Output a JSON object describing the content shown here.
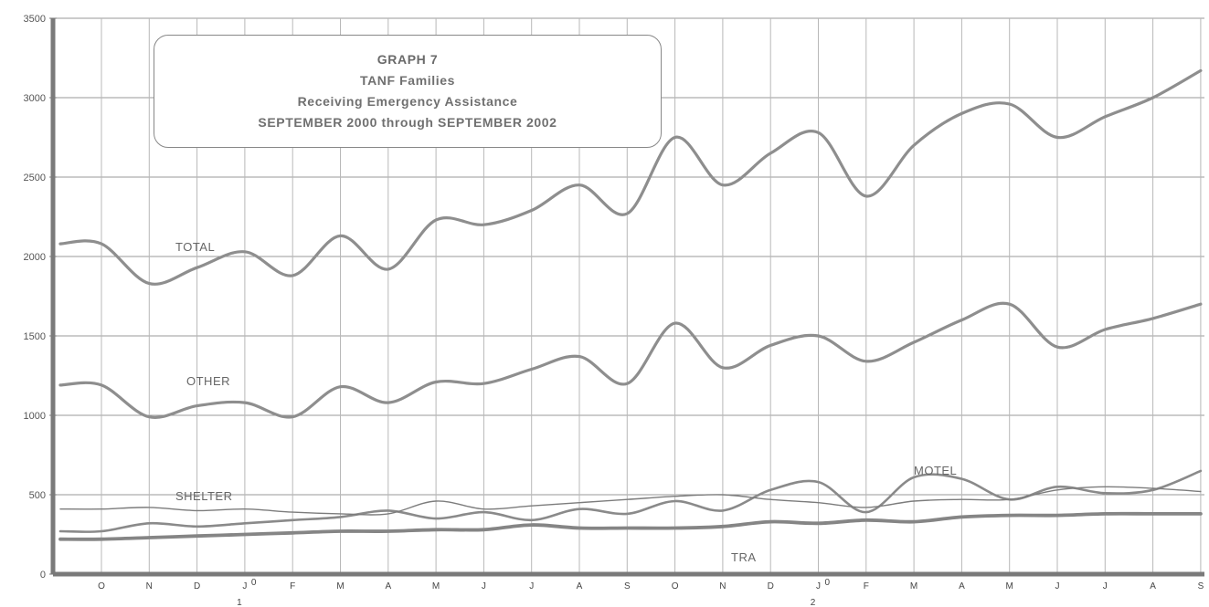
{
  "title": {
    "graph_number": "GRAPH 7",
    "line1": "TANF Families",
    "line2": "Receiving Emergency Assistance",
    "line3": "SEPTEMBER 2000 through SEPTEMBER 2002"
  },
  "chart_data": {
    "type": "line",
    "title": "TANF Families Receiving Emergency Assistance",
    "ylim": [
      0,
      3500
    ],
    "y_ticks": [
      0,
      500,
      1000,
      1500,
      2000,
      2500,
      3000,
      3500
    ],
    "y_tick_labels": [
      "0",
      "500",
      "1000",
      "1500",
      "2000",
      "2500",
      "3000",
      "3500"
    ],
    "grid": true,
    "legend": "inline labels",
    "x_tick_labels": [
      "O",
      "N",
      "D",
      "J",
      "F",
      "M",
      "A",
      "M",
      "J",
      "J",
      "A",
      "S",
      "O",
      "N",
      "D",
      "J",
      "F",
      "M",
      "A",
      "M",
      "J",
      "J",
      "A",
      "S"
    ],
    "x_tick_sublabels": {
      "3": "0",
      "15": "0"
    },
    "year_markers": [
      {
        "index": 3,
        "label": "1"
      },
      {
        "index": 15,
        "label": "2"
      }
    ],
    "series": [
      {
        "name": "TOTAL",
        "color": "#8e8e8e",
        "stroke": 3.2,
        "values": [
          2080,
          1830,
          1930,
          2030,
          1880,
          2130,
          1920,
          2230,
          2200,
          2290,
          2450,
          2270,
          2750,
          2450,
          2650,
          2780,
          2380,
          2700,
          2900,
          2960,
          2750,
          2880,
          3000,
          3170
        ]
      },
      {
        "name": "OTHER",
        "color": "#8e8e8e",
        "stroke": 3.2,
        "values": [
          1190,
          990,
          1060,
          1080,
          990,
          1180,
          1080,
          1210,
          1200,
          1290,
          1370,
          1200,
          1580,
          1300,
          1440,
          1500,
          1340,
          1460,
          1600,
          1700,
          1430,
          1540,
          1610,
          1700
        ]
      },
      {
        "name": "MOTEL",
        "color": "#8a8a8a",
        "stroke": 2.6,
        "values": [
          270,
          320,
          300,
          320,
          340,
          360,
          400,
          350,
          390,
          340,
          410,
          380,
          460,
          400,
          530,
          580,
          390,
          610,
          600,
          470,
          550,
          510,
          530,
          650
        ]
      },
      {
        "name": "SHELTER",
        "color": "#7c7c7c",
        "stroke": 1.4,
        "values": [
          410,
          420,
          400,
          410,
          390,
          380,
          380,
          460,
          410,
          430,
          450,
          470,
          490,
          500,
          470,
          450,
          420,
          460,
          470,
          470,
          530,
          550,
          540,
          520
        ]
      },
      {
        "name": "TRA",
        "color": "#858585",
        "stroke": 3.8,
        "values": [
          220,
          230,
          240,
          250,
          260,
          270,
          270,
          280,
          280,
          310,
          290,
          290,
          290,
          300,
          330,
          320,
          340,
          330,
          360,
          370,
          370,
          380,
          380,
          380
        ]
      }
    ]
  }
}
